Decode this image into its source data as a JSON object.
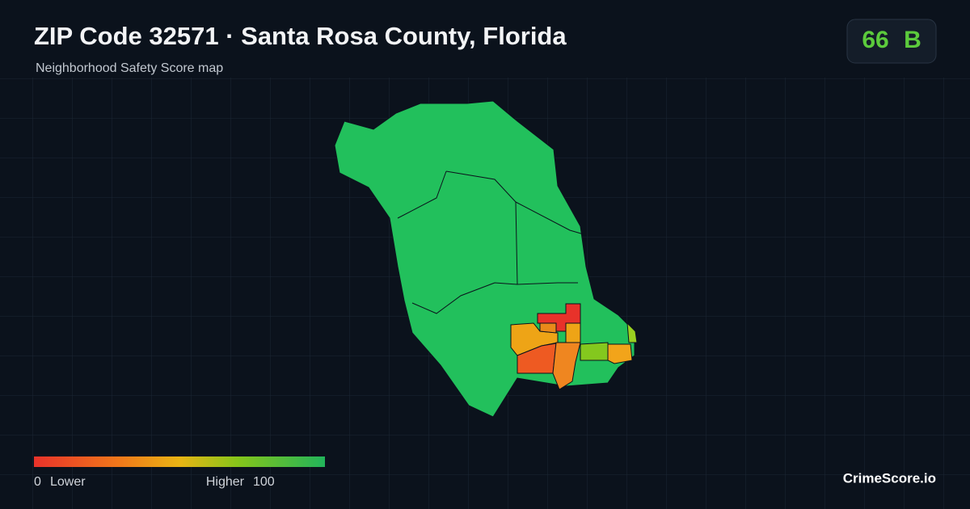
{
  "header": {
    "title": "ZIP Code 32571 · Santa Rosa County, Florida",
    "subtitle": "Neighborhood Safety Score map"
  },
  "score": {
    "value": 66,
    "grade": "B"
  },
  "legend": {
    "min": 0,
    "min_label": "Lower",
    "max_label": "Higher",
    "max": 100
  },
  "brand": "CrimeScore.io"
}
